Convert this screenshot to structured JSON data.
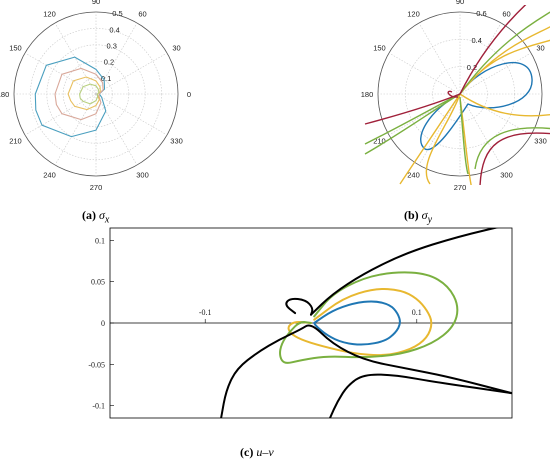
{
  "chart_data": [
    {
      "type": "polar-line",
      "caption_tag": "(a)",
      "caption_sym": "σ",
      "caption_sub": "x",
      "angle_ticks": [
        "0",
        "30",
        "60",
        "90",
        "120",
        "150",
        "180",
        "210",
        "240",
        "270",
        "300",
        "330"
      ],
      "r_ticks": [
        "0.1",
        "0.2",
        "0.3",
        "0.4",
        "0.5"
      ],
      "rmax": 0.5,
      "colors": [
        "#4a9fbf",
        "#d9a89a",
        "#e8c060",
        "#b8d080"
      ],
      "series": [
        {
          "theta_deg": [
            0,
            30,
            60,
            90,
            120,
            150,
            180,
            195,
            210,
            240,
            270,
            300,
            330
          ],
          "r": [
            0.02,
            0.06,
            0.1,
            0.15,
            0.26,
            0.35,
            0.37,
            0.38,
            0.38,
            0.3,
            0.22,
            0.12,
            0.04
          ]
        },
        {
          "theta_deg": [
            0,
            30,
            60,
            90,
            120,
            150,
            180,
            195,
            210,
            240,
            270,
            300,
            330
          ],
          "r": [
            0.02,
            0.05,
            0.08,
            0.12,
            0.18,
            0.24,
            0.25,
            0.25,
            0.24,
            0.18,
            0.12,
            0.06,
            0.02
          ]
        },
        {
          "theta_deg": [
            0,
            30,
            60,
            90,
            120,
            150,
            180,
            195,
            210,
            240,
            270,
            300,
            330
          ],
          "r": [
            0.01,
            0.03,
            0.05,
            0.08,
            0.12,
            0.16,
            0.17,
            0.16,
            0.15,
            0.11,
            0.07,
            0.04,
            0.01
          ]
        },
        {
          "theta_deg": [
            0,
            30,
            60,
            90,
            120,
            150,
            180,
            195,
            210,
            240,
            270,
            300,
            330
          ],
          "r": [
            0.01,
            0.02,
            0.03,
            0.05,
            0.07,
            0.09,
            0.1,
            0.1,
            0.09,
            0.07,
            0.04,
            0.02,
            0.01
          ]
        }
      ]
    },
    {
      "type": "polar-line",
      "caption_tag": "(b)",
      "caption_sym": "σ",
      "caption_sub": "y",
      "angle_ticks": [
        "0",
        "30",
        "60",
        "90",
        "120",
        "150",
        "180",
        "210",
        "240",
        "270",
        "300",
        "330"
      ],
      "r_ticks": [
        "0.2",
        "0.4",
        "0.6"
      ],
      "rmax": 0.6,
      "colors": [
        "#1f77b4",
        "#e8b830",
        "#7ab040",
        "#a0203a"
      ]
    },
    {
      "type": "line",
      "caption_tag": "(c)",
      "caption_text": "u–v",
      "xlim": [
        -0.19,
        0.19
      ],
      "ylim": [
        -0.115,
        0.115
      ],
      "x_ticks": [
        -0.1,
        0.1
      ],
      "y_ticks": [
        0.1,
        0.05,
        0,
        -0.05,
        -0.1
      ],
      "colors": [
        "#1f77b4",
        "#e8b830",
        "#7ab040",
        "#000000"
      ],
      "series": [
        {
          "x": [
            0.003,
            0.02,
            0.04,
            0.06,
            0.075,
            0.082,
            0.085,
            0.08,
            0.07,
            0.05,
            0.03,
            0.015,
            0.005,
            0.003
          ],
          "y": [
            0,
            0.015,
            0.024,
            0.027,
            0.022,
            0.012,
            0,
            -0.012,
            -0.022,
            -0.027,
            -0.024,
            -0.015,
            -0.004,
            0
          ]
        },
        {
          "x": [
            0.003,
            0.03,
            0.06,
            0.085,
            0.1,
            0.11,
            0.115,
            0.11,
            0.095,
            0.07,
            0.04,
            0.01,
            -0.01,
            -0.02,
            -0.022,
            -0.015,
            0
          ],
          "y": [
            0.004,
            0.03,
            0.042,
            0.04,
            0.03,
            0.015,
            0,
            -0.018,
            -0.032,
            -0.04,
            -0.037,
            -0.028,
            -0.02,
            -0.012,
            -0.004,
            0.002,
            0
          ]
        },
        {
          "x": [
            0.003,
            0.02,
            0.05,
            0.08,
            0.11,
            0.13,
            0.14,
            0.135,
            0.115,
            0.085,
            0.05,
            0.015,
            -0.01,
            -0.025,
            -0.03,
            -0.028,
            -0.02,
            -0.01,
            0
          ],
          "y": [
            0.008,
            0.035,
            0.055,
            0.062,
            0.06,
            0.045,
            0.02,
            -0.005,
            -0.025,
            -0.038,
            -0.042,
            -0.04,
            -0.045,
            -0.05,
            -0.04,
            -0.025,
            -0.01,
            0.002,
            0
          ]
        },
        {
          "x": [
            0,
            0.02,
            0.05,
            0.09,
            0.14,
            0.19
          ],
          "y": [
            0.01,
            0.035,
            0.06,
            0.085,
            0.105,
            0.12
          ]
        },
        {
          "x": [
            -0.085,
            -0.08,
            -0.07,
            -0.05,
            -0.03,
            -0.01,
            0,
            0.02,
            0.05,
            0.09,
            0.13,
            0.19
          ],
          "y": [
            -0.115,
            -0.08,
            -0.055,
            -0.035,
            -0.02,
            -0.008,
            0,
            -0.025,
            -0.045,
            -0.055,
            -0.065,
            -0.085
          ]
        },
        {
          "x": [
            -0.015,
            -0.025,
            -0.02,
            -0.005,
            0.002,
            0
          ],
          "y": [
            0.012,
            0.022,
            0.03,
            0.028,
            0.018,
            0.01
          ]
        },
        {
          "x": [
            0.018,
            0.025,
            0.035,
            0.05,
            0.08,
            0.12,
            0.19
          ],
          "y": [
            -0.115,
            -0.095,
            -0.075,
            -0.062,
            -0.063,
            -0.072,
            -0.085
          ]
        }
      ]
    }
  ]
}
